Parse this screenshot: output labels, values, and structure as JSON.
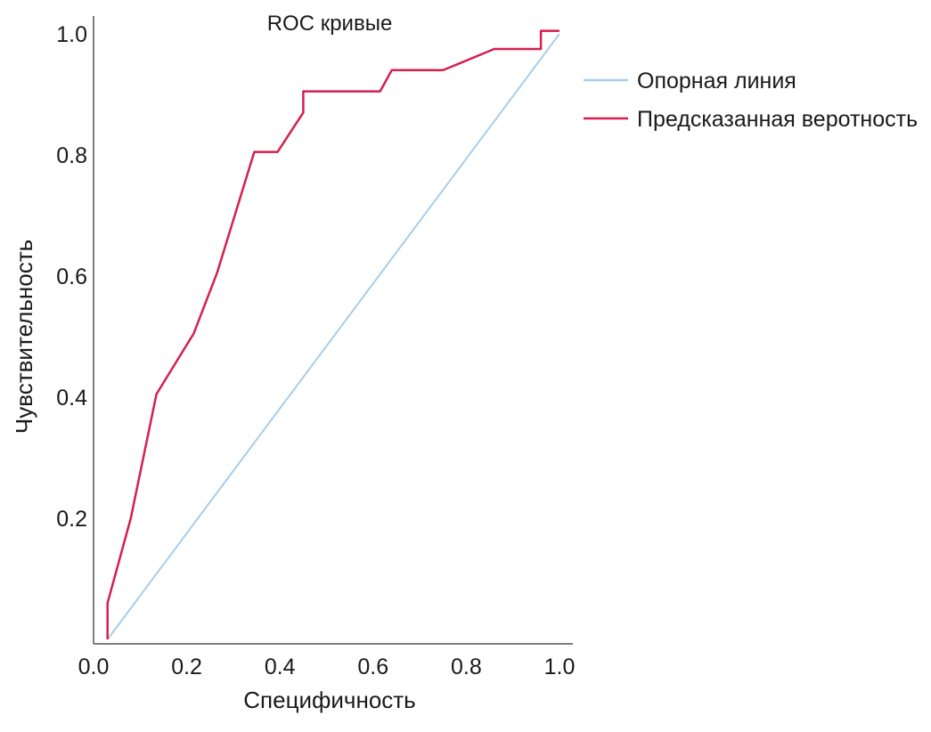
{
  "chart_data": {
    "type": "line",
    "title": "ROC кривые",
    "xlabel": "Специфичность",
    "ylabel": "Чувствительность",
    "xlim": [
      0,
      1
    ],
    "ylim": [
      0,
      1
    ],
    "x_ticks": [
      "0.0",
      "0.2",
      "0.4",
      "0.6",
      "0.8",
      "1.0"
    ],
    "y_ticks": [
      "0.2",
      "0.4",
      "0.6",
      "0.8",
      "1.0"
    ],
    "grid": false,
    "legend_position": "top-right",
    "series": [
      {
        "name": "Опорная линия",
        "color": "#a9cdea",
        "points": [
          [
            0.03,
            0.0
          ],
          [
            1.0,
            1.0
          ]
        ]
      },
      {
        "name": "Предсказанная веротность",
        "color": "#d51f4f",
        "points": [
          [
            0.03,
            0.0
          ],
          [
            0.03,
            0.06
          ],
          [
            0.08,
            0.2
          ],
          [
            0.135,
            0.405
          ],
          [
            0.215,
            0.505
          ],
          [
            0.265,
            0.605
          ],
          [
            0.345,
            0.805
          ],
          [
            0.395,
            0.805
          ],
          [
            0.45,
            0.87
          ],
          [
            0.45,
            0.905
          ],
          [
            0.615,
            0.905
          ],
          [
            0.64,
            0.94
          ],
          [
            0.75,
            0.94
          ],
          [
            0.86,
            0.975
          ],
          [
            0.96,
            0.975
          ],
          [
            0.96,
            1.005
          ],
          [
            1.0,
            1.005
          ]
        ]
      }
    ]
  }
}
